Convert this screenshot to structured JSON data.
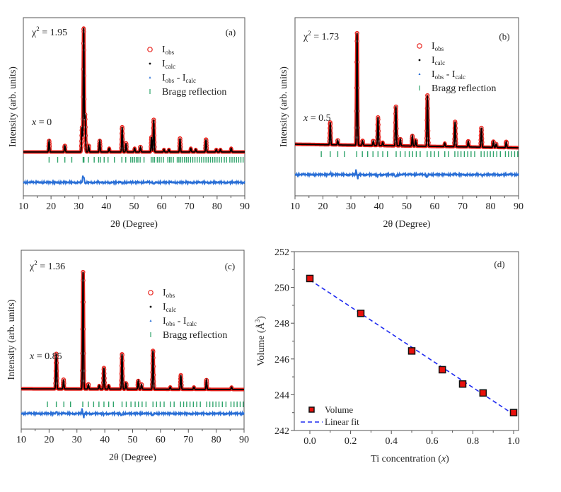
{
  "colors": {
    "obs": "#e8221c",
    "calc": "#000000",
    "diff": "#2a6fd6",
    "bragg": "#2ea36a",
    "fit": "#1f2bf0",
    "volume_fill": "#e8100c",
    "axis": "#555555"
  },
  "chart_data": [
    {
      "panel": "(a)",
      "type": "line",
      "chi2": {
        "symbol": "χ",
        "exp": "2",
        "value": " = 1.95"
      },
      "sample": {
        "var": "x",
        "value": " = 0"
      },
      "xlabel": "2θ (Degree)",
      "ylabel": "Intensity (arb. units)",
      "xlim": [
        10,
        90
      ],
      "xticks": [
        "10",
        "20",
        "30",
        "40",
        "50",
        "60",
        "70",
        "80",
        "90"
      ],
      "legend": [
        {
          "main": "I",
          "sub": "obs"
        },
        {
          "main": "I",
          "sub": "calc"
        },
        {
          "main": "I",
          "sub": "obs",
          "main2": " - I",
          "sub2": "calc"
        },
        {
          "main": "Bragg reflection"
        }
      ],
      "peaks": [
        [
          19.3,
          0.09
        ],
        [
          25,
          0.05
        ],
        [
          31.2,
          0.2
        ],
        [
          31.8,
          1.0
        ],
        [
          32.3,
          0.3
        ],
        [
          33.6,
          0.05
        ],
        [
          37.6,
          0.09
        ],
        [
          41,
          0.03
        ],
        [
          45.7,
          0.2
        ],
        [
          47.1,
          0.07
        ],
        [
          50.2,
          0.03
        ],
        [
          52.3,
          0.04
        ],
        [
          56.3,
          0.12
        ],
        [
          57.1,
          0.26
        ],
        [
          60.8,
          0.02
        ],
        [
          62.6,
          0.02
        ],
        [
          66.6,
          0.11
        ],
        [
          70.5,
          0.03
        ],
        [
          72.3,
          0.02
        ],
        [
          76,
          0.1
        ],
        [
          79.7,
          0.02
        ],
        [
          81.2,
          0.02
        ],
        [
          85.1,
          0.03
        ]
      ],
      "bragg": [
        19.3,
        22.4,
        25,
        27.5,
        31.6,
        31.9,
        33.5,
        35.6,
        37.2,
        37.8,
        39.2,
        40.6,
        42.9,
        45.6,
        47,
        48.8,
        49.5,
        50.2,
        50.8,
        51.4,
        52.2,
        53.6,
        56.2,
        56.8,
        57.4,
        58.4,
        59.1,
        59.8,
        60.6,
        62.2,
        62.8,
        63.4,
        64.2,
        65.6,
        66.2,
        66.8,
        67.4,
        68.2,
        68.9,
        69.6,
        70.4,
        71.2,
        72,
        72.8,
        73.6,
        74.4,
        75.2,
        76,
        76.8,
        77.6,
        78.4,
        79.2,
        80,
        80.8,
        81.6,
        82.6,
        83.4,
        84.6,
        85.4,
        86.2,
        87,
        87.8,
        88.6,
        89.4
      ]
    },
    {
      "panel": "(b)",
      "type": "line",
      "chi2": {
        "symbol": "χ",
        "exp": "2",
        "value": " = 1.73"
      },
      "sample": {
        "var": "x",
        "value": " = 0.5"
      },
      "xlabel": "2θ (Degree)",
      "ylabel": "Intensity (arb. units)",
      "xlim": [
        10,
        90
      ],
      "xticks": [
        "10",
        "20",
        "30",
        "40",
        "50",
        "60",
        "70",
        "80",
        "90"
      ],
      "legend": [
        {
          "main": "I",
          "sub": "obs"
        },
        {
          "main": "I",
          "sub": "calc"
        },
        {
          "main": "I",
          "sub": "obs",
          "main2": " - I",
          "sub2": "calc"
        },
        {
          "main": "Bragg reflection"
        }
      ],
      "peaks": [
        [
          22.6,
          0.2
        ],
        [
          25.3,
          0.04
        ],
        [
          32.2,
          1.0
        ],
        [
          34.2,
          0.04
        ],
        [
          38,
          0.04
        ],
        [
          39.7,
          0.25
        ],
        [
          41.4,
          0.03
        ],
        [
          46.1,
          0.35
        ],
        [
          47.7,
          0.06
        ],
        [
          52,
          0.09
        ],
        [
          53.2,
          0.05
        ],
        [
          57.4,
          0.45
        ],
        [
          63.6,
          0.03
        ],
        [
          67.3,
          0.22
        ],
        [
          72,
          0.05
        ],
        [
          76.7,
          0.17
        ],
        [
          81,
          0.05
        ],
        [
          82,
          0.03
        ],
        [
          85.6,
          0.05
        ]
      ],
      "bragg": [
        19.4,
        22.6,
        25.3,
        27.7,
        32.1,
        34.1,
        36,
        37.9,
        39.7,
        41.4,
        43.1,
        46.2,
        47.7,
        49.4,
        50.9,
        52.1,
        53.4,
        54.8,
        57.3,
        58.6,
        59.9,
        61.3,
        63.6,
        64.9,
        67.2,
        68.3,
        69.4,
        70.6,
        71.8,
        73,
        74.3,
        76.6,
        77.7,
        78.8,
        79.9,
        81,
        82.2,
        83.5,
        85.3,
        86.4,
        87.5,
        88.6,
        89.7
      ]
    },
    {
      "panel": "(c)",
      "type": "line",
      "chi2": {
        "symbol": "χ",
        "exp": "2",
        "value": " = 1.36"
      },
      "sample": {
        "var": "x",
        "value": " = 0.85"
      },
      "xlabel": "2θ (Degree)",
      "ylabel": "Intensity (arb. units)",
      "xlim": [
        10,
        90
      ],
      "xticks": [
        "10",
        "20",
        "30",
        "40",
        "50",
        "60",
        "70",
        "80",
        "90"
      ],
      "legend": [
        {
          "main": "I",
          "sub": "obs"
        },
        {
          "main": "I",
          "sub": "calc"
        },
        {
          "main": "I",
          "sub": "obs",
          "main2": " - I",
          "sub2": "calc"
        },
        {
          "main": "Bragg reflection"
        }
      ],
      "peaks": [
        [
          22.6,
          0.3
        ],
        [
          25.2,
          0.08
        ],
        [
          32.2,
          1.0
        ],
        [
          34.1,
          0.04
        ],
        [
          38,
          0.03
        ],
        [
          39.7,
          0.18
        ],
        [
          41.4,
          0.03
        ],
        [
          46.2,
          0.3
        ],
        [
          47.6,
          0.05
        ],
        [
          52,
          0.07
        ],
        [
          53.2,
          0.04
        ],
        [
          57.3,
          0.33
        ],
        [
          63.5,
          0.02
        ],
        [
          67.3,
          0.12
        ],
        [
          72,
          0.02
        ],
        [
          76.5,
          0.08
        ],
        [
          85.5,
          0.02
        ]
      ],
      "bragg": [
        19.4,
        22.6,
        25.3,
        27.7,
        32.1,
        34.1,
        36,
        37.9,
        39.7,
        41.4,
        43.1,
        46.2,
        47.7,
        49.4,
        50.9,
        52.1,
        53.4,
        54.8,
        57.3,
        58.6,
        59.9,
        61.3,
        63.6,
        64.9,
        67.2,
        68.3,
        69.4,
        70.6,
        71.8,
        73,
        74.3,
        76.6,
        77.7,
        78.8,
        79.9,
        81,
        82.2,
        83.5,
        85.3,
        86.4,
        87.5,
        88.6,
        89.7
      ]
    },
    {
      "panel": "(d)",
      "type": "scatter",
      "xlabel": "Ti concentration (",
      "xlabel_var": "x",
      "xlabel_end": ")",
      "ylabel": "Volume (Å",
      "ylabel_exp": "3",
      "ylabel_end": ")",
      "xlim": [
        -0.05,
        1.04
      ],
      "ylim": [
        242,
        252
      ],
      "xticks": [
        "0.0",
        "0.2",
        "0.4",
        "0.6",
        "0.8",
        "1.0"
      ],
      "yticks": [
        "242",
        "244",
        "246",
        "248",
        "250",
        "252"
      ],
      "series": [
        {
          "name": "Volume",
          "x": [
            0,
            0.25,
            0.5,
            0.65,
            0.75,
            0.85,
            1.0
          ],
          "y": [
            250.5,
            248.55,
            246.45,
            245.4,
            244.6,
            244.1,
            243.0
          ]
        },
        {
          "name": "Linear fit",
          "x": [
            0,
            1.0
          ],
          "y": [
            250.42,
            242.9
          ]
        }
      ],
      "legend": [
        "Volume",
        "Linear fit"
      ]
    }
  ]
}
